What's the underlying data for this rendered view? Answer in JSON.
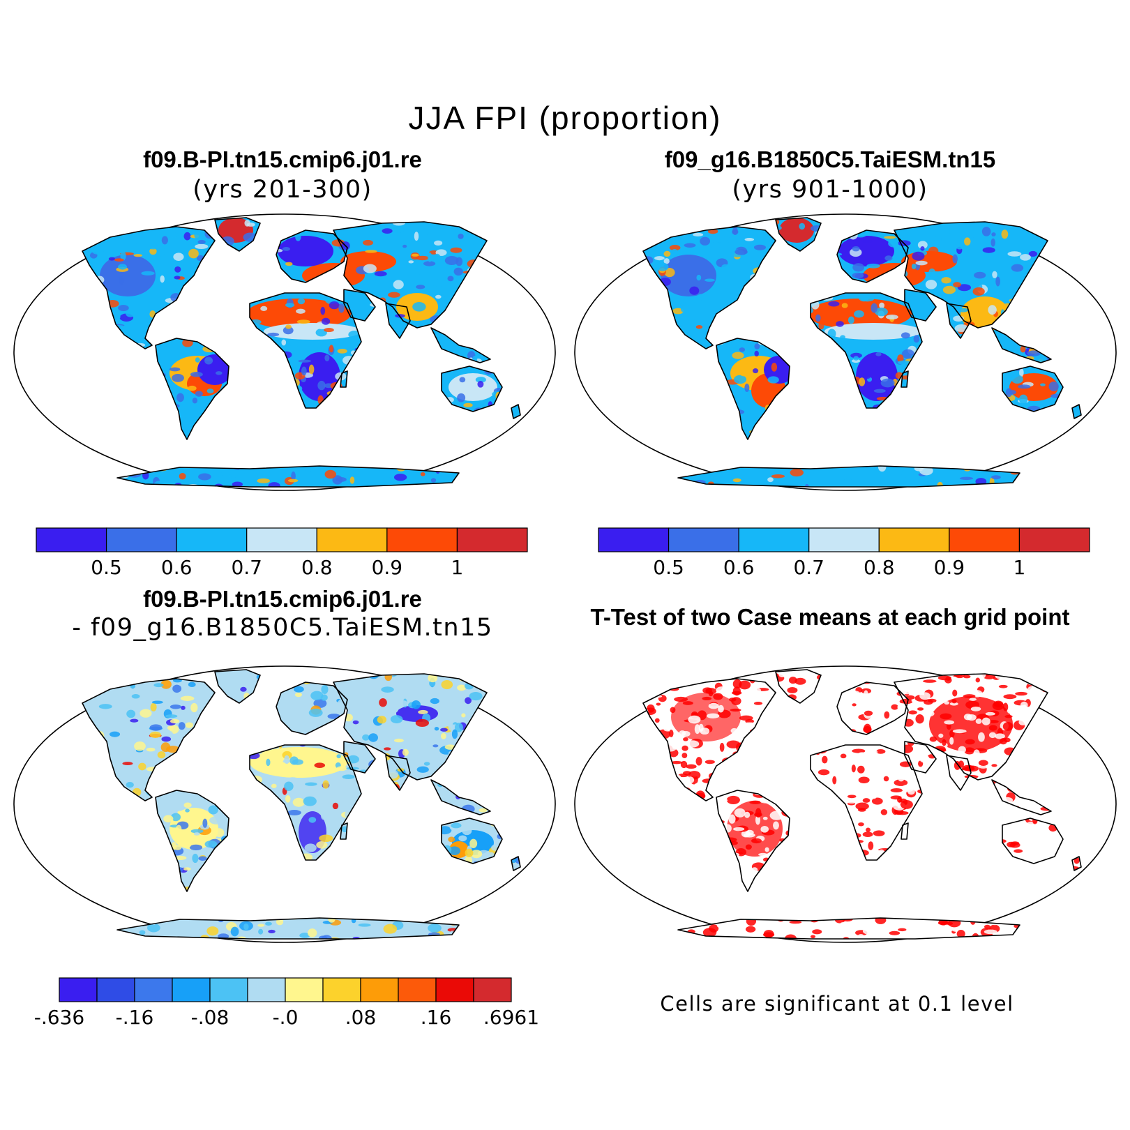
{
  "main_title": "JJA FPI (proportion)",
  "panels": [
    {
      "id": "case1",
      "title": "f09.B-PI.tn15.cmip6.j01.re",
      "subtitle": "(yrs 201-300)"
    },
    {
      "id": "case2",
      "title": "f09_g16.B1850C5.TaiESM.tn15",
      "subtitle": "(yrs 901-1000)"
    },
    {
      "id": "diff",
      "title": "f09.B-PI.tn15.cmip6.j01.re",
      "subtitle": "- f09_g16.B1850C5.TaiESM.tn15"
    },
    {
      "id": "ttest",
      "title": "T-Test of two Case means at each grid point",
      "subtitle": ""
    }
  ],
  "colorbar_main": {
    "colors": [
      "#3a1ef0",
      "#3a6fe8",
      "#16b7f8",
      "#c8e6f6",
      "#fcb914",
      "#fd4a06",
      "#d42a2e"
    ],
    "labels": [
      "0.5",
      "0.6",
      "0.7",
      "0.8",
      "0.9",
      "1"
    ]
  },
  "colorbar_diff": {
    "colors": [
      "#3a1ef0",
      "#2f4ce6",
      "#3c78ec",
      "#17a0f8",
      "#4cc2f4",
      "#b0dcf2",
      "#fff68e",
      "#fcd22c",
      "#fd9c08",
      "#fc5a0a",
      "#ea0a06",
      "#d42a2e"
    ],
    "labels": [
      "-.636",
      "-.16",
      "-.08",
      "-.0",
      ".08",
      ".16",
      ".6961"
    ]
  },
  "ttest_note": "Cells are significant at 0.1 level",
  "colors": {
    "significant": "#ff0000",
    "coastline": "#000000"
  }
}
